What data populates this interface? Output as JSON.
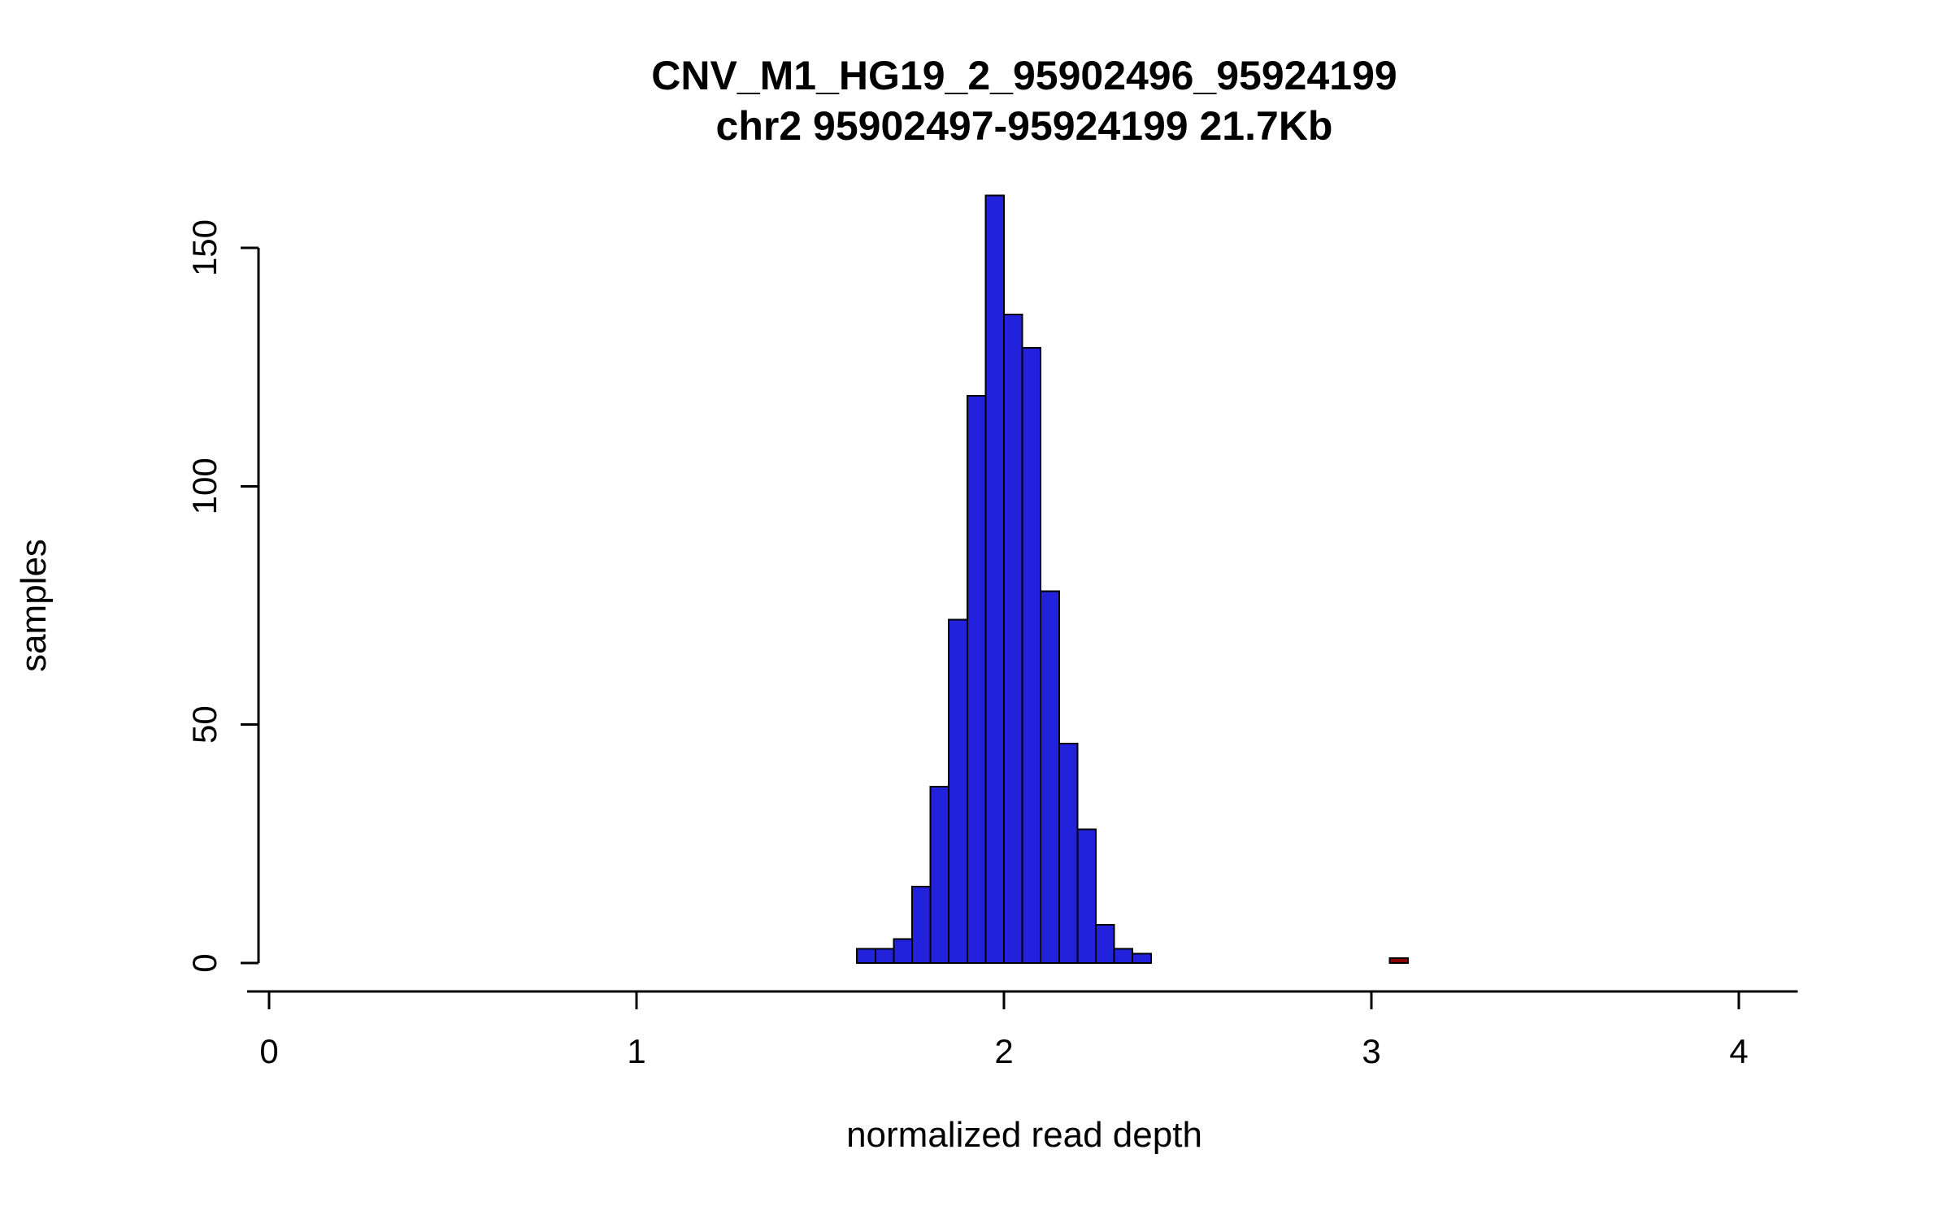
{
  "header": {
    "title": "CNV_M1_HG19_2_95902496_95924199",
    "subtitle": "chr2 95902497-95924199 21.7Kb"
  },
  "axes": {
    "xlabel": "normalized read depth",
    "ylabel": "samples"
  },
  "colors": {
    "bar_fill": "#2222dd",
    "bar_stroke": "#000000",
    "outlier_fill": "#8b0000",
    "axis_color": "#000000",
    "background": "#ffffff"
  },
  "chart_data": {
    "type": "bar",
    "subtype": "histogram",
    "title": "CNV_M1_HG19_2_95902496_95924199",
    "subtitle": "chr2 95902497-95924199 21.7Kb",
    "xlabel": "normalized read depth",
    "ylabel": "samples",
    "bin_width": 0.05,
    "bins": [
      [
        1.6,
        3
      ],
      [
        1.65,
        3
      ],
      [
        1.7,
        5
      ],
      [
        1.75,
        16
      ],
      [
        1.8,
        37
      ],
      [
        1.85,
        72
      ],
      [
        1.9,
        119
      ],
      [
        1.95,
        161
      ],
      [
        2.0,
        136
      ],
      [
        2.05,
        129
      ],
      [
        2.1,
        78
      ],
      [
        2.15,
        46
      ],
      [
        2.2,
        28
      ],
      [
        2.25,
        8
      ],
      [
        2.3,
        3
      ],
      [
        2.35,
        2
      ]
    ],
    "outlier_bins": [
      [
        3.05,
        1
      ]
    ],
    "xticks": [
      0,
      1,
      2,
      3,
      4
    ],
    "yticks": [
      0,
      50,
      100,
      150
    ],
    "xlim": [
      -0.06,
      4.16
    ],
    "ylim": [
      0,
      168
    ],
    "grid": false,
    "legend": "none"
  }
}
